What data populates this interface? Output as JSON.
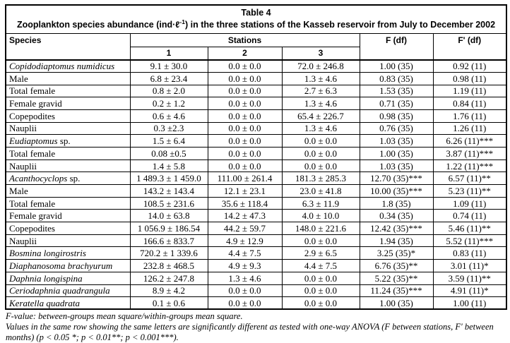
{
  "table": {
    "title": "Table 4",
    "subtitle_pre": "Zooplankton species abundance (ind·ℓ",
    "subtitle_sup": "-1",
    "subtitle_post": ") in the three stations of the Kasseb reservoir from July to December 2002",
    "header": {
      "species": "Species",
      "stations": "Stations",
      "station_cols": [
        "1",
        "2",
        "3"
      ],
      "f": "F (df)",
      "f_prime": "F' (df)"
    },
    "rows": [
      {
        "italic": "Copidodiaptomus numidicus",
        "plain": "",
        "s1": "9.1 ± 30.0",
        "s2": "0.0 ± 0.0",
        "s3": "72.0 ± 246.8",
        "f": "1.00 (35)",
        "fp": "0.92 (11)"
      },
      {
        "italic": "",
        "plain": "Male",
        "s1": "6.8 ± 23.4",
        "s2": "0.0 ± 0.0",
        "s3": "1.3 ± 4.6",
        "f": "0.83 (35)",
        "fp": "0.98 (11)"
      },
      {
        "italic": "",
        "plain": "Total female",
        "s1": "0.8 ± 2.0",
        "s2": "0.0 ± 0.0",
        "s3": "2.7 ± 6.3",
        "f": "1.53 (35)",
        "fp": "1.19 (11)"
      },
      {
        "italic": "",
        "plain": "Female gravid",
        "s1": "0.2 ± 1.2",
        "s2": "0.0 ± 0.0",
        "s3": "1.3 ± 4.6",
        "f": "0.71 (35)",
        "fp": "0.84 (11)"
      },
      {
        "italic": "",
        "plain": "Copepodites",
        "s1": "0.6 ± 4.6",
        "s2": "0.0 ± 0.0",
        "s3": "65.4 ± 226.7",
        "f": "0.98 (35)",
        "fp": "1.76 (11)"
      },
      {
        "italic": "",
        "plain": "Nauplii",
        "s1": "0.3 ±2.3",
        "s2": "0.0 ± 0.0",
        "s3": "1.3 ± 4.6",
        "f": "0.76 (35)",
        "fp": "1.26 (11)"
      },
      {
        "italic": "Eudiaptomus",
        "plain": " sp.",
        "s1": "1.5 ± 6.4",
        "s2": "0.0 ± 0.0",
        "s3": "0.0 ± 0.0",
        "f": "1.03 (35)",
        "fp": "6.26 (11)***"
      },
      {
        "italic": "",
        "plain": "Total female",
        "s1": "0.08 ±0.5",
        "s2": "0.0 ± 0.0",
        "s3": "0.0 ± 0.0",
        "f": "1.00 (35)",
        "fp": "3.87 (11)***"
      },
      {
        "italic": "",
        "plain": "Nauplii",
        "s1": "1.4 ± 5.8",
        "s2": "0.0 ± 0.0",
        "s3": "0.0 ± 0.0",
        "f": "1.03 (35)",
        "fp": "1.22 (11)***"
      },
      {
        "italic": "Acanthocyclops",
        "plain": " sp.",
        "s1": "1 489.3 ± 1 459.0",
        "s2": "111.00 ± 261.4",
        "s3": "181.3 ± 285.3",
        "f": "12.70 (35)***",
        "fp": "6.57 (11)**"
      },
      {
        "italic": "",
        "plain": "Male",
        "s1": "143.2 ± 143.4",
        "s2": "12.1 ± 23.1",
        "s3": "23.0 ± 41.8",
        "f": "10.00 (35)***",
        "fp": "5.23 (11)**"
      },
      {
        "italic": "",
        "plain": "Total female",
        "s1": "108.5 ± 231.6",
        "s2": "35.6 ± 118.4",
        "s3": "6.3 ± 11.9",
        "f": "1.8 (35)",
        "fp": "1.09 (11)"
      },
      {
        "italic": "",
        "plain": "Female gravid",
        "s1": "14.0 ± 63.8",
        "s2": "14.2 ± 47.3",
        "s3": "4.0 ± 10.0",
        "f": "0.34 (35)",
        "fp": "0.74 (11)"
      },
      {
        "italic": "",
        "plain": "Copepodites",
        "s1": "1 056.9 ± 186.54",
        "s2": "44.2 ± 59.7",
        "s3": "148.0 ± 221.6",
        "f": "12.42 (35)***",
        "fp": "5.46 (11)**"
      },
      {
        "italic": "",
        "plain": "Nauplii",
        "s1": "166.6 ± 833.7",
        "s2": "4.9 ± 12.9",
        "s3": "0.0 ± 0.0",
        "f": "1.94 (35)",
        "fp": "5.52 (11)***"
      },
      {
        "italic": "Bosmina longirostris",
        "plain": "",
        "s1": "720.2 ± 1 339.6",
        "s2": "4.4 ± 7.5",
        "s3": "2.9 ± 6.5",
        "f": "3.25 (35)*",
        "fp": "0.83 (11)"
      },
      {
        "italic": "Diaphanosoma brachyurum",
        "plain": "",
        "s1": "232.8 ± 468.5",
        "s2": "4.9 ± 9.3",
        "s3": "4.4 ± 7.5",
        "f": "6.76 (35)**",
        "fp": "3.01 (11)*"
      },
      {
        "italic": "Daphnia longispina",
        "plain": "",
        "s1": "126.2 ± 247.8",
        "s2": "1.3 ± 4.6",
        "s3": "0.0 ± 0.0",
        "f": "5.22 (35)**",
        "fp": "3.59 (11)**"
      },
      {
        "italic": "Ceriodaphnia quadrangula",
        "plain": "",
        "s1": "8.9 ± 4.2",
        "s2": "0.0 ± 0.0",
        "s3": "0.0 ± 0.0",
        "f": "11.24 (35)***",
        "fp": "4.91 (11)*"
      },
      {
        "italic": "Keratella quadrata",
        "plain": "",
        "s1": "0.1 ± 0.6",
        "s2": "0.0 ± 0.0",
        "s3": "0.0 ± 0.0",
        "f": "1.00 (35)",
        "fp": "1.00 (11)"
      }
    ]
  },
  "footnotes": {
    "line1": "F-value: between-groups mean square/within-groups mean square.",
    "line2": "Values in the same row showing the same letters are significantly different as tested with one-way ANOVA (F between stations, F' between months) (p < 0.05 *; p < 0.01**; p < 0.001***)."
  },
  "colors": {
    "background": "#ffffff",
    "border": "#000000",
    "text": "#000000"
  }
}
